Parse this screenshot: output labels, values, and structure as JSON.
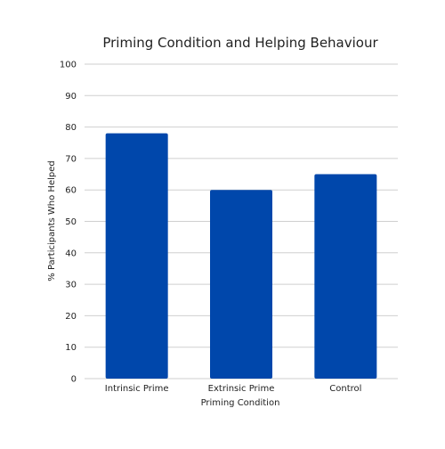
{
  "chart_data": {
    "type": "bar",
    "title": "Priming Condition and Helping Behaviour",
    "xlabel": "Priming Condition",
    "ylabel": "% Participants Who Helped",
    "categories": [
      "Intrinsic Prime",
      "Extrinsic Prime",
      "Control"
    ],
    "values": [
      78,
      60,
      65
    ],
    "ylim": [
      0,
      100
    ],
    "yticks": [
      "0",
      "10",
      "20",
      "30",
      "40",
      "50",
      "60",
      "70",
      "80",
      "90",
      "100"
    ],
    "grid": true,
    "legend": "none",
    "bar_color": "#0047ab"
  }
}
